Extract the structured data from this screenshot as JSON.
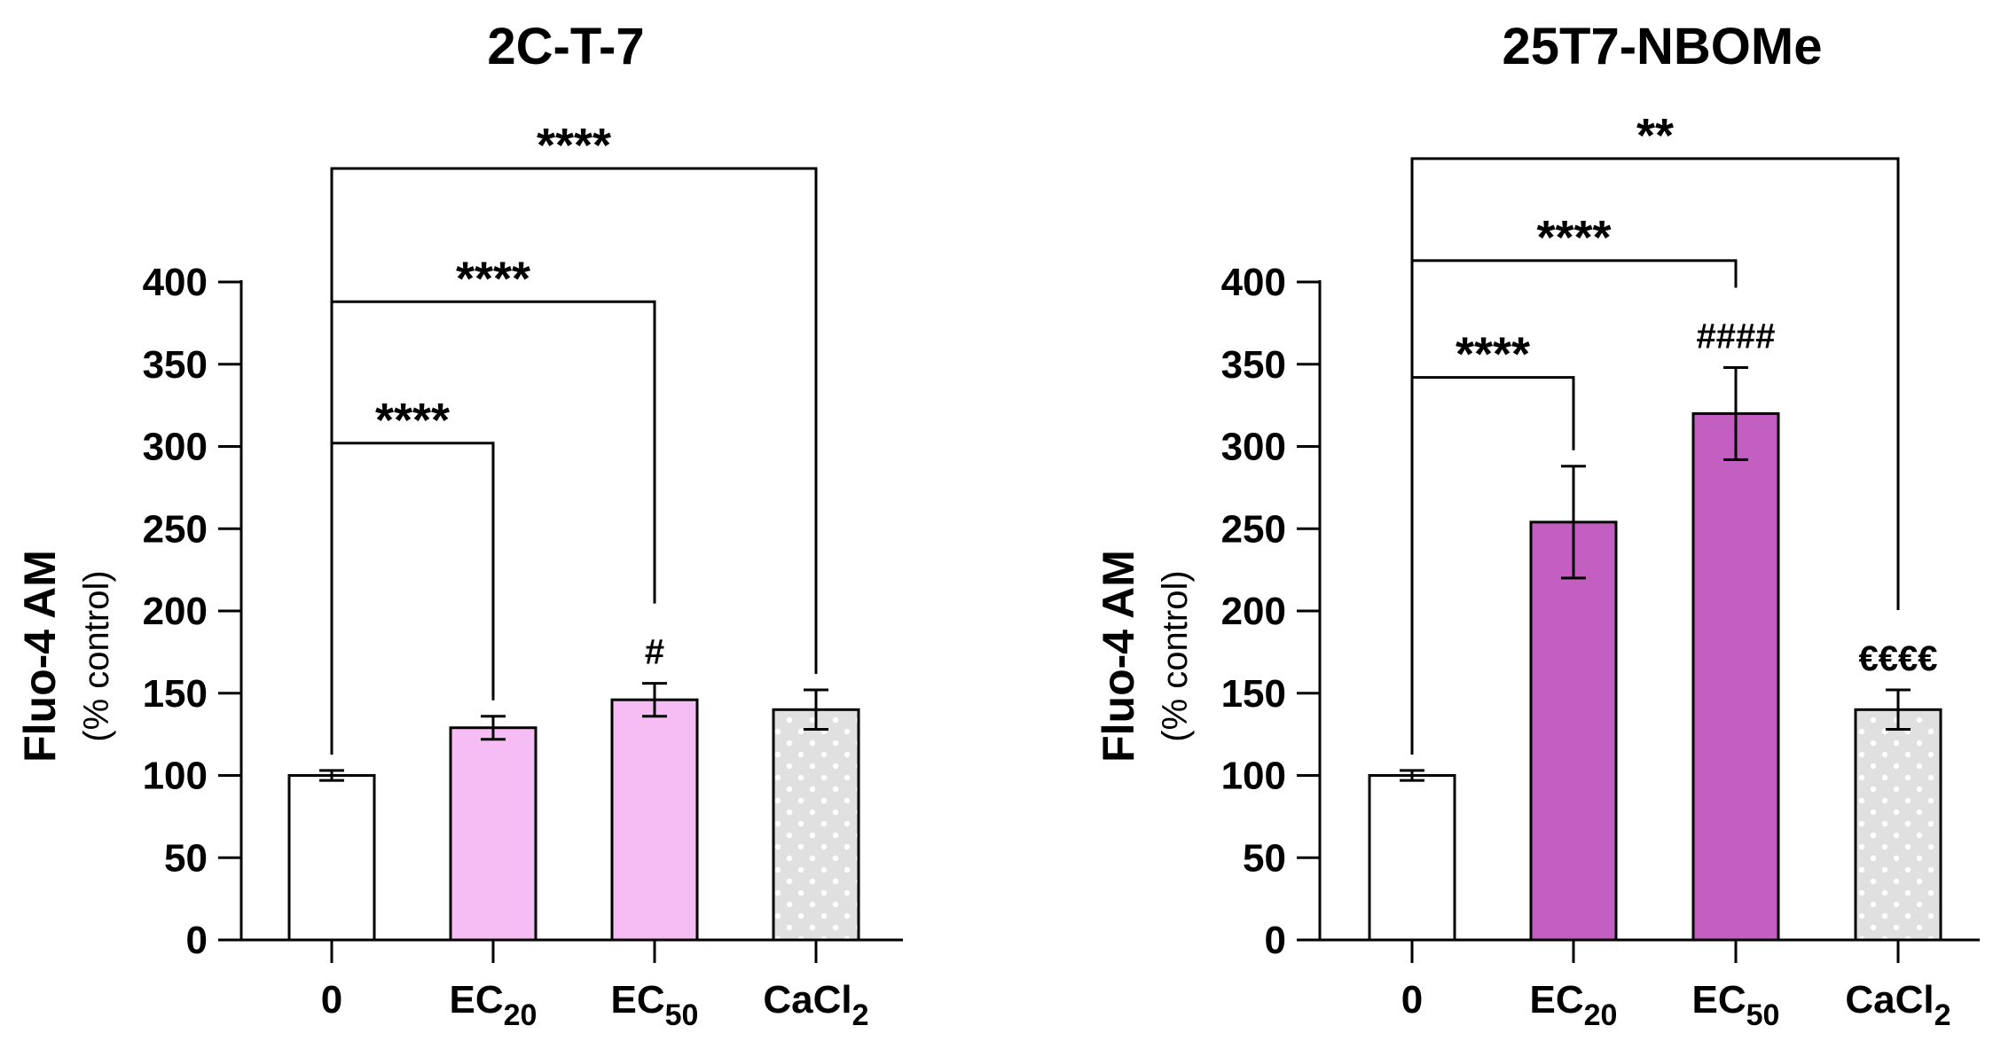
{
  "chart_data": [
    {
      "type": "bar",
      "title": "2C-T-7",
      "xlabel": "",
      "ylabel": "Fluo-4 AM",
      "ylabel_sub": "(% control)",
      "ylim": [
        0,
        400
      ],
      "yticks": [
        0,
        50,
        100,
        150,
        200,
        250,
        300,
        350,
        400
      ],
      "categories": [
        {
          "main": "0",
          "sub": ""
        },
        {
          "main": "EC",
          "sub": "20"
        },
        {
          "main": "EC",
          "sub": "50"
        },
        {
          "main": "CaCl",
          "sub": "2"
        }
      ],
      "values": [
        100,
        129,
        146,
        140
      ],
      "errors": [
        3,
        7,
        10,
        12
      ],
      "colors": [
        "#ffffff",
        "#f5bdf3",
        "#f5bdf3",
        "#e0e0e0"
      ],
      "pattern": [
        false,
        false,
        false,
        true
      ],
      "bar_marks": [
        "",
        "",
        "#",
        ""
      ],
      "comparisons": [
        {
          "from": 0,
          "to": 1,
          "label": "****",
          "level": 302
        },
        {
          "from": 0,
          "to": 2,
          "label": "****",
          "level": 388
        },
        {
          "from": 0,
          "to": 3,
          "label": "****",
          "level": 469
        }
      ]
    },
    {
      "type": "bar",
      "title": "25T7-NBOMe",
      "xlabel": "",
      "ylabel": "Fluo-4 AM",
      "ylabel_sub": "(% control)",
      "ylim": [
        0,
        400
      ],
      "yticks": [
        0,
        50,
        100,
        150,
        200,
        250,
        300,
        350,
        400
      ],
      "categories": [
        {
          "main": "0",
          "sub": ""
        },
        {
          "main": "EC",
          "sub": "20"
        },
        {
          "main": "EC",
          "sub": "50"
        },
        {
          "main": "CaCl",
          "sub": "2"
        }
      ],
      "values": [
        100,
        254,
        320,
        140
      ],
      "errors": [
        3,
        34,
        28,
        12
      ],
      "colors": [
        "#ffffff",
        "#c35fc0",
        "#c35fc0",
        "#e0e0e0"
      ],
      "pattern": [
        false,
        false,
        false,
        true
      ],
      "bar_marks": [
        "",
        "",
        "####",
        "€€€€"
      ],
      "comparisons": [
        {
          "from": 0,
          "to": 1,
          "label": "****",
          "level": 342
        },
        {
          "from": 0,
          "to": 2,
          "label": "****",
          "level": 413
        },
        {
          "from": 0,
          "to": 3,
          "label": "**",
          "level": 475
        }
      ]
    }
  ]
}
